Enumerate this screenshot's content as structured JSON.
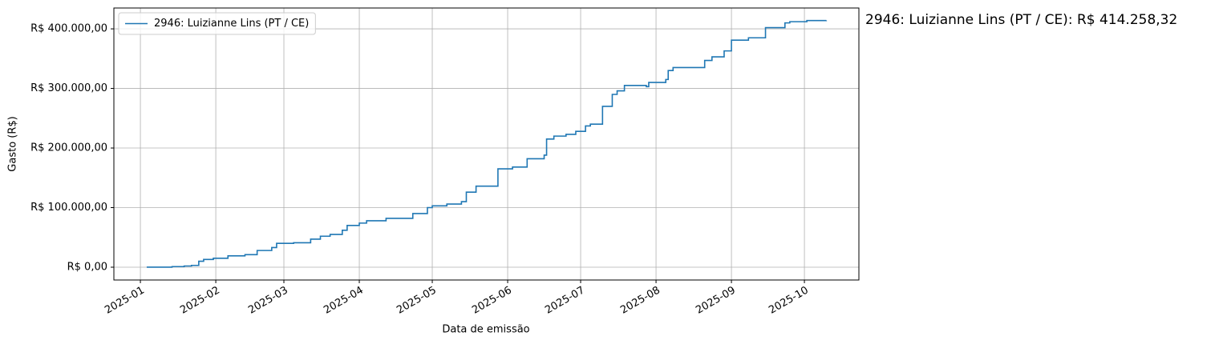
{
  "chart_data": {
    "type": "line",
    "drawstyle": "steps-post",
    "xlabel": "Data de emissão",
    "ylabel": "Gasto (R$)",
    "annotation": "2946: Luizianne Lins (PT / CE): R$ 414.258,32",
    "legend": "upper left",
    "grid": true,
    "xlim": [
      -10.9,
      295.4
    ],
    "xticks": [
      {
        "value": 0,
        "label": "2025-01"
      },
      {
        "value": 31,
        "label": "2025-02"
      },
      {
        "value": 59,
        "label": "2025-03"
      },
      {
        "value": 90,
        "label": "2025-04"
      },
      {
        "value": 120,
        "label": "2025-05"
      },
      {
        "value": 151,
        "label": "2025-06"
      },
      {
        "value": 181,
        "label": "2025-07"
      },
      {
        "value": 212,
        "label": "2025-08"
      },
      {
        "value": 243,
        "label": "2025-09"
      },
      {
        "value": 273,
        "label": "2025-10"
      }
    ],
    "ylim": [
      -21500,
      435000
    ],
    "yticks": [
      {
        "value": 0,
        "label": "R$ 0,00"
      },
      {
        "value": 100000,
        "label": "R$ 100.000,00"
      },
      {
        "value": 200000,
        "label": "R$ 200.000,00"
      },
      {
        "value": 300000,
        "label": "R$ 300.000,00"
      },
      {
        "value": 400000,
        "label": "R$ 400.000,00"
      }
    ],
    "x": [
      2.6,
      13,
      18,
      21,
      24,
      26,
      30,
      36,
      43,
      48,
      54,
      56,
      63,
      70,
      74,
      78,
      83,
      85,
      90,
      93,
      101,
      112,
      118,
      120,
      126,
      132,
      134,
      138,
      147,
      153,
      159,
      166,
      167,
      170,
      175,
      179,
      183,
      185,
      190,
      194,
      196,
      199,
      208,
      209,
      216,
      217,
      219,
      232,
      235,
      240,
      243,
      250,
      257,
      265,
      267,
      274,
      282
    ],
    "series": [
      {
        "name": "2946: Luizianne Lins (PT / CE)",
        "color": "#1f77b4",
        "values": [
          0,
          1000,
          2000,
          3000,
          10000,
          13000,
          15000,
          19000,
          21000,
          28000,
          33000,
          40000,
          41000,
          47000,
          52000,
          55000,
          62000,
          70000,
          74000,
          78000,
          82000,
          90000,
          100000,
          103000,
          106000,
          110000,
          126000,
          136000,
          165000,
          168000,
          182000,
          188000,
          215000,
          220000,
          223000,
          228000,
          237000,
          240000,
          270000,
          290000,
          296000,
          305000,
          303000,
          310000,
          315000,
          330000,
          335000,
          347000,
          353000,
          363000,
          381000,
          385000,
          402000,
          410000,
          412000,
          414000,
          414258.32
        ]
      }
    ]
  }
}
